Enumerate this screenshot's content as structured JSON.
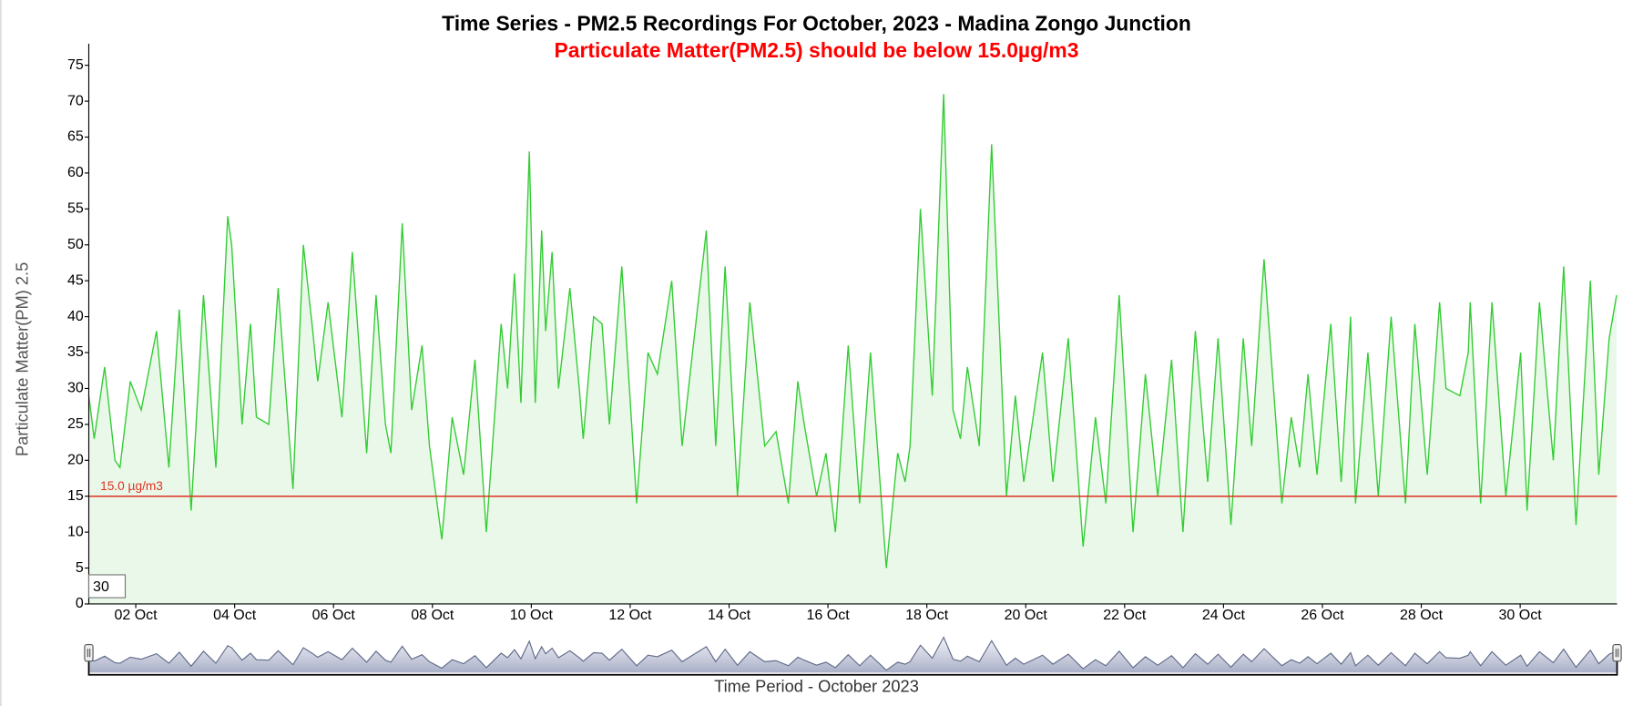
{
  "chart_data": {
    "type": "line",
    "title": "Time Series - PM2.5 Recordings For October, 2023 - Madina Zongo Junction",
    "subtitle": "Particulate Matter(PM2.5) should be below 15.0µg/m3",
    "xlabel": "Time Period - October 2023",
    "ylabel": "Particulate Matter(PM) 2.5",
    "color": "#33cc33",
    "fill_color": "#e9f8e9",
    "x": [
      1.05,
      1.16,
      1.37,
      1.58,
      1.68,
      1.89,
      2.11,
      2.42,
      2.67,
      2.88,
      3.12,
      3.37,
      3.62,
      3.86,
      3.94,
      4.15,
      4.32,
      4.44,
      4.69,
      4.88,
      5.18,
      5.39,
      5.58,
      5.68,
      5.89,
      6.17,
      6.38,
      6.67,
      6.86,
      7.05,
      7.16,
      7.39,
      7.58,
      7.79,
      7.94,
      8.19,
      8.4,
      8.63,
      8.86,
      9.09,
      9.39,
      9.52,
      9.66,
      9.79,
      9.96,
      10.08,
      10.21,
      10.29,
      10.42,
      10.55,
      10.78,
      10.97,
      11.05,
      11.26,
      11.43,
      11.58,
      11.83,
      12.13,
      12.36,
      12.55,
      12.84,
      13.05,
      13.26,
      13.54,
      13.73,
      13.92,
      14.17,
      14.42,
      14.72,
      14.95,
      15.2,
      15.39,
      15.52,
      15.77,
      15.96,
      16.15,
      16.41,
      16.64,
      16.86,
      17.18,
      17.41,
      17.56,
      17.66,
      17.87,
      18.11,
      18.34,
      18.53,
      18.68,
      18.82,
      19.06,
      19.31,
      19.61,
      19.79,
      19.96,
      20.34,
      20.55,
      20.86,
      21.16,
      21.41,
      21.62,
      21.89,
      22.17,
      22.42,
      22.67,
      22.95,
      23.18,
      23.43,
      23.68,
      23.89,
      24.15,
      24.4,
      24.57,
      24.82,
      25.18,
      25.37,
      25.54,
      25.71,
      25.89,
      26.17,
      26.38,
      26.57,
      26.67,
      26.92,
      27.13,
      27.39,
      27.68,
      27.87,
      28.12,
      28.37,
      28.5,
      28.78,
      28.95,
      28.99,
      29.2,
      29.43,
      29.71,
      30.01,
      30.14,
      30.39,
      30.67,
      30.88,
      31.13,
      31.42,
      31.59,
      31.8,
      31.95
    ],
    "values": [
      29,
      23,
      33,
      20,
      19,
      31,
      27,
      38,
      19,
      41,
      13,
      43,
      19,
      54,
      50,
      25,
      39,
      26,
      25,
      44,
      16,
      50,
      38,
      31,
      42,
      26,
      49,
      21,
      43,
      25,
      21,
      53,
      27,
      36,
      22,
      9,
      26,
      18,
      34,
      10,
      39,
      30,
      46,
      28,
      63,
      28,
      52,
      38,
      49,
      30,
      44,
      30,
      23,
      40,
      39,
      25,
      47,
      14,
      35,
      32,
      45,
      22,
      35,
      52,
      22,
      47,
      15,
      42,
      22,
      24,
      14,
      31,
      25,
      15,
      21,
      10,
      36,
      14,
      35,
      5,
      21,
      17,
      22,
      55,
      29,
      71,
      27,
      23,
      33,
      22,
      64,
      15,
      29,
      17,
      35,
      17,
      37,
      8,
      26,
      14,
      43,
      10,
      32,
      15,
      34,
      10,
      38,
      17,
      37,
      11,
      37,
      22,
      48,
      14,
      26,
      19,
      32,
      18,
      39,
      17,
      40,
      14,
      35,
      15,
      40,
      14,
      39,
      18,
      42,
      30,
      29,
      35,
      42,
      14,
      42,
      15,
      35,
      13,
      42,
      20,
      47,
      11,
      45,
      18,
      37,
      43
    ],
    "xlim": [
      1.05,
      31.96
    ],
    "ylim": [
      0,
      78
    ],
    "xticks": [
      {
        "value": 2,
        "label": "02 Oct"
      },
      {
        "value": 4,
        "label": "04 Oct"
      },
      {
        "value": 6,
        "label": "06 Oct"
      },
      {
        "value": 8,
        "label": "08 Oct"
      },
      {
        "value": 10,
        "label": "10 Oct"
      },
      {
        "value": 12,
        "label": "12 Oct"
      },
      {
        "value": 14,
        "label": "14 Oct"
      },
      {
        "value": 16,
        "label": "16 Oct"
      },
      {
        "value": 18,
        "label": "18 Oct"
      },
      {
        "value": 20,
        "label": "20 Oct"
      },
      {
        "value": 22,
        "label": "22 Oct"
      },
      {
        "value": 24,
        "label": "24 Oct"
      },
      {
        "value": 26,
        "label": "26 Oct"
      },
      {
        "value": 28,
        "label": "28 Oct"
      },
      {
        "value": 30,
        "label": "30 Oct"
      }
    ],
    "yticks": [
      0,
      5,
      10,
      15,
      20,
      25,
      30,
      35,
      40,
      45,
      50,
      55,
      60,
      65,
      70,
      75
    ],
    "threshold": 15,
    "threshold_label": "15.0 µg/m3",
    "threshold_color": "#e03020",
    "rolling_period": 30,
    "range_selector": true
  }
}
